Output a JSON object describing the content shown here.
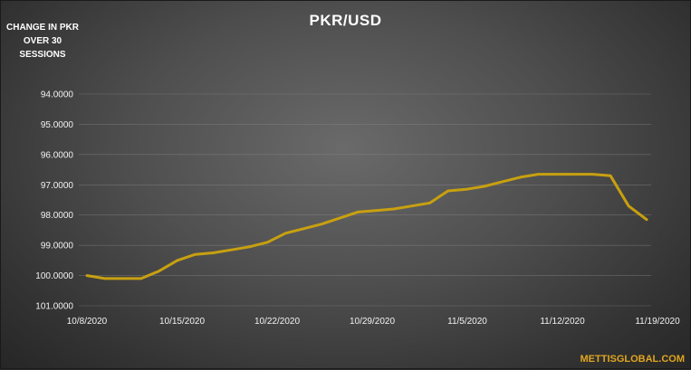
{
  "chart_data": {
    "type": "line",
    "title": "PKR/USD",
    "ylabel": "CHANGE IN PKR OVER 30 SESSIONS",
    "ylim": [
      101,
      94
    ],
    "y_inverted": true,
    "y_ticks": [
      "94.0000",
      "95.0000",
      "96.0000",
      "97.0000",
      "98.0000",
      "99.0000",
      "100.0000",
      "101.0000"
    ],
    "x_ticks": [
      "10/8/2020",
      "10/15/2020",
      "10/22/2020",
      "10/29/2020",
      "11/5/2020",
      "11/12/2020",
      "11/19/2020"
    ],
    "grid": "horizontal",
    "line_color": "#c8a010",
    "series": [
      {
        "x": [
          "2020-10-08",
          "2020-10-09",
          "2020-10-12",
          "2020-10-13",
          "2020-10-14",
          "2020-10-15",
          "2020-10-16",
          "2020-10-19",
          "2020-10-20",
          "2020-10-21",
          "2020-10-22",
          "2020-10-23",
          "2020-10-26",
          "2020-10-27",
          "2020-10-28",
          "2020-10-29",
          "2020-10-30",
          "2020-11-02",
          "2020-11-03",
          "2020-11-04",
          "2020-11-05",
          "2020-11-06",
          "2020-11-09",
          "2020-11-10",
          "2020-11-11",
          "2020-11-12",
          "2020-11-13",
          "2020-11-16",
          "2020-11-17",
          "2020-11-18",
          "2020-11-19",
          "2020-11-20"
        ],
        "values": [
          100.0,
          100.1,
          100.1,
          100.1,
          99.85,
          99.5,
          99.3,
          99.25,
          99.15,
          99.05,
          98.9,
          98.6,
          98.45,
          98.3,
          98.1,
          97.9,
          97.85,
          97.8,
          97.7,
          97.6,
          97.2,
          97.15,
          97.05,
          96.9,
          96.75,
          96.65,
          96.65,
          96.65,
          96.65,
          96.7,
          97.7,
          98.15
        ]
      }
    ]
  },
  "brand": "METTISGLOBAL.COM"
}
